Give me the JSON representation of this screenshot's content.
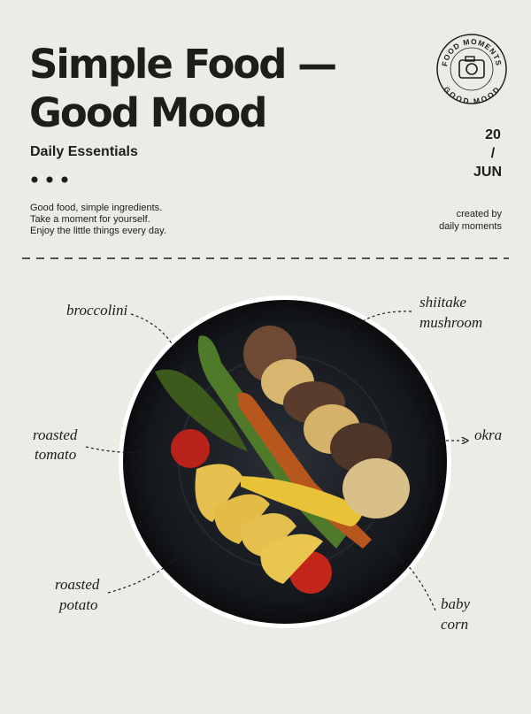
{
  "header": {
    "title": [
      "Simple Food —",
      "Good Mood"
    ],
    "subtitle": "Daily Essentials",
    "body": [
      "Good food, simple ingredients.",
      "Take a moment for yourself.",
      "Enjoy the little things every day."
    ]
  },
  "date": {
    "day": "20",
    "separator": "/",
    "month": "JUN"
  },
  "credit": [
    "created by",
    "daily moments"
  ],
  "stamp": {
    "top": "FOOD MOMENTS",
    "bottom": "GOOD MOOD"
  },
  "labels": [
    {
      "lines": [
        "broccolini"
      ]
    },
    {
      "lines": [
        "shiitake",
        "mushroom"
      ]
    },
    {
      "lines": [
        "roasted",
        "tomato"
      ]
    },
    {
      "lines": [
        "okra"
      ]
    },
    {
      "lines": [
        "roasted",
        "potato"
      ]
    },
    {
      "lines": [
        "baby",
        "corn"
      ]
    }
  ]
}
